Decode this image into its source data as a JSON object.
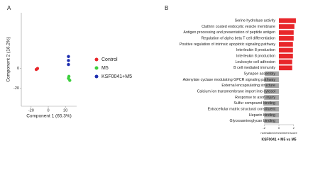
{
  "chart_data": [
    {
      "type": "scatter",
      "panel": "A",
      "xlabel": "Component 1 (65.3%)",
      "ylabel": "Component 2 (16.2%)",
      "xlim": [
        -38,
        33
      ],
      "xticks": [
        -20,
        0,
        20
      ],
      "ylim": [
        -38,
        56
      ],
      "yticks": [
        -20,
        0
      ],
      "series": [
        {
          "name": "Control",
          "color": "#e8262a",
          "x": [
            -14,
            -12.5
          ],
          "y": [
            -1,
            0
          ]
        },
        {
          "name": "M5",
          "color": "#3ccf3c",
          "x": [
            24,
            23.5,
            25
          ],
          "y": [
            -8,
            -10,
            -12
          ]
        },
        {
          "name": "KSF0041+M5",
          "color": "#1f2fb0",
          "x": [
            23.5,
            23.5,
            23.5
          ],
          "y": [
            12,
            8,
            4
          ]
        }
      ]
    },
    {
      "type": "bar",
      "panel": "B",
      "xlabel": "normalized enrichment score",
      "annotation": "KSF0041 + M5 vs M5",
      "categories": [
        "Serine hydrolase activity",
        "Clathrin coated endocytic vesicle membrane",
        "Antigen processing and presentation of peptide antigen",
        "Regulation of alpha beta T cell differentiation",
        "Positive regulation of intrinsic apoptotic signaling pathway",
        "Interleukin 8 production",
        "Interleukin 8 production",
        "Leukocyte cell adhesion",
        "B cell mediated immunity",
        "Synapse assembly",
        "Adenylate cyclase modulating GPCR signaling pathway",
        "External encapsulating structure",
        "Calcium ion transmembrane import into cytosol",
        "Response to axon injury",
        "Sulfur compound binding",
        "Extracellular matrix structural constituent",
        "Heparin binding",
        "Glycosaminoglycan binding"
      ],
      "values": [
        2.3,
        2.1,
        2.0,
        2.0,
        1.9,
        1.9,
        1.9,
        1.8,
        1.8,
        -1.9,
        -2.0,
        -1.9,
        -2.0,
        -2.0,
        -2.1,
        -2.0,
        -2.0,
        -2.0
      ],
      "color_positive": "#e8262a",
      "color_negative": "#a6a6a6",
      "xlim": [
        -2.5,
        2.5
      ],
      "xticks": [
        -2,
        0,
        2
      ]
    }
  ]
}
